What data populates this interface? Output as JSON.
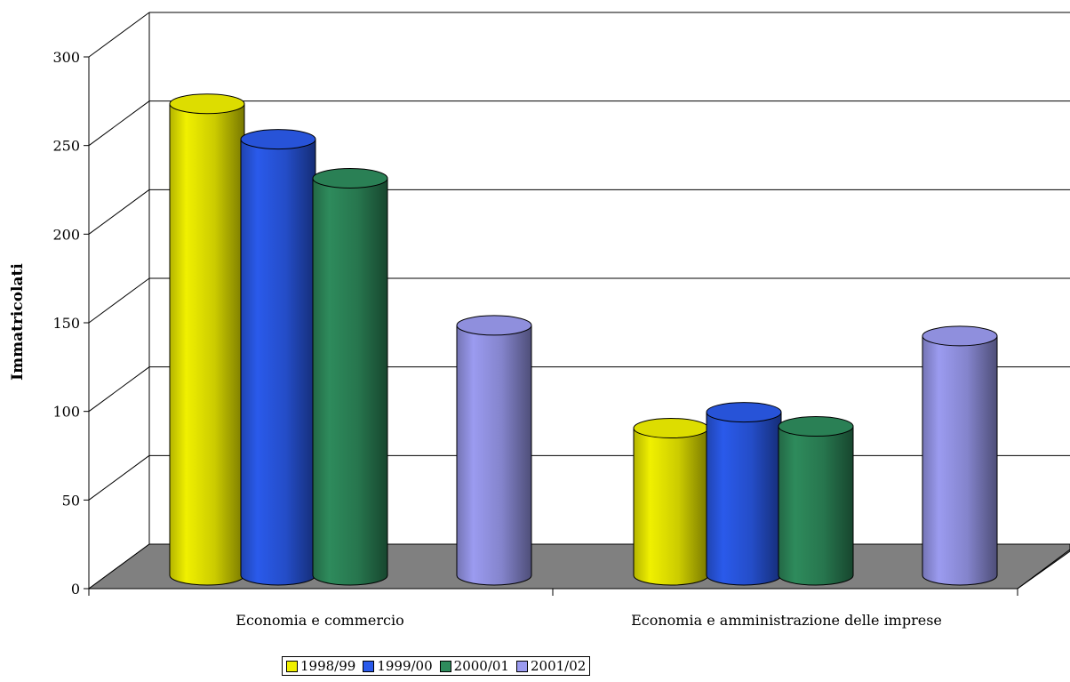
{
  "chart_data": {
    "type": "bar",
    "style": "3d-cylinder",
    "title": "",
    "xlabel": "",
    "ylabel": "Immatricolati",
    "ylim": [
      0,
      300
    ],
    "yticks": [
      0,
      50,
      100,
      150,
      200,
      250,
      300
    ],
    "grid": true,
    "legend_position": "bottom-center",
    "categories": [
      "Economia e commercio",
      "Economia e amministrazione delle imprese"
    ],
    "series": [
      {
        "name": "1998/99",
        "color": "#f0f000",
        "values": [
          265,
          82
        ]
      },
      {
        "name": "1999/00",
        "color": "#2a5aeb",
        "values": [
          245,
          91
        ]
      },
      {
        "name": "2000/01",
        "color": "#2e8b5c",
        "values": [
          223,
          83
        ]
      },
      {
        "name": "2001/02",
        "color": "#9b9bf0",
        "values": [
          140,
          134
        ]
      }
    ],
    "floor_color": "#808080"
  }
}
